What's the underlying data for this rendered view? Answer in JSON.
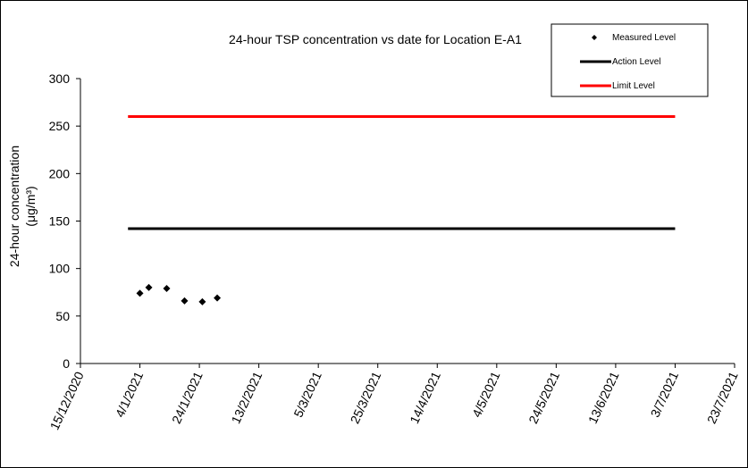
{
  "chart_data": {
    "type": "scatter",
    "title": "24-hour TSP concentration vs date for Location E-A1",
    "y_label": [
      "24-hour concentration",
      "(μg/m³)"
    ],
    "series": [
      {
        "name": "Measured Level",
        "style": "marker",
        "color": "#000000",
        "x": [
          "4/1/2021",
          "7/1/2021",
          "13/1/2021",
          "19/1/2021",
          "25/1/2021",
          "30/1/2021"
        ],
        "values": [
          74,
          80,
          79,
          66,
          65,
          69
        ]
      },
      {
        "name": "Action Level",
        "style": "line",
        "color": "#000000",
        "x": [
          "31/12/2020",
          "3/7/2021"
        ],
        "values": [
          142,
          142
        ]
      },
      {
        "name": "Limit Level",
        "style": "line",
        "color": "#ff0000",
        "x": [
          "31/12/2020",
          "3/7/2021"
        ],
        "values": [
          260,
          260
        ]
      }
    ],
    "xlim": [
      "15/12/2020",
      "23/7/2021"
    ],
    "xticks": [
      "15/12/2020",
      "4/1/2021",
      "24/1/2021",
      "13/2/2021",
      "5/3/2021",
      "25/3/2021",
      "14/4/2021",
      "4/5/2021",
      "24/5/2021",
      "13/6/2021",
      "3/7/2021",
      "23/7/2021"
    ],
    "ylim": [
      0,
      300
    ],
    "yticks": [
      0,
      50,
      100,
      150,
      200,
      250,
      300
    ],
    "legend": "top-right"
  }
}
